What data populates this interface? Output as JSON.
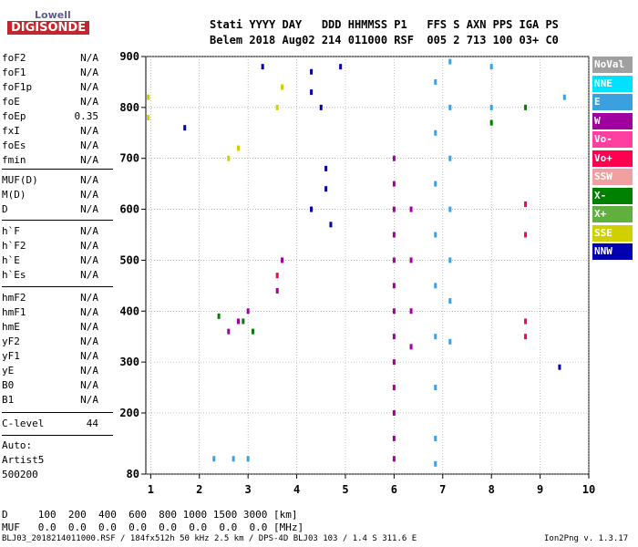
{
  "logo": {
    "top": "Lowell",
    "bottom": "DIGISONDE"
  },
  "header": {
    "line1": "Stati YYYY DAY   DDD HHMMSS P1   FFS S AXN PPS IGA PS",
    "line2": "Belem 2018 Aug02 214 011000 RSF  005 2 713 100 03+ C0"
  },
  "params": [
    {
      "name": "foF2",
      "value": "N/A"
    },
    {
      "name": "foF1",
      "value": "N/A"
    },
    {
      "name": "foF1p",
      "value": "N/A"
    },
    {
      "name": "foE",
      "value": "N/A"
    },
    {
      "name": "foEp",
      "value": "0.35"
    },
    {
      "name": "fxI",
      "value": "N/A"
    },
    {
      "name": "foEs",
      "value": "N/A"
    },
    {
      "name": "fmin",
      "value": "N/A"
    },
    {
      "name": "MUF(D)",
      "value": "N/A"
    },
    {
      "name": "M(D)",
      "value": "N/A"
    },
    {
      "name": "D",
      "value": "N/A"
    },
    {
      "name": "h`F",
      "value": "N/A"
    },
    {
      "name": "h`F2",
      "value": "N/A"
    },
    {
      "name": "h`E",
      "value": "N/A"
    },
    {
      "name": "h`Es",
      "value": "N/A"
    },
    {
      "name": "hmF2",
      "value": "N/A"
    },
    {
      "name": "hmF1",
      "value": "N/A"
    },
    {
      "name": "hmE",
      "value": "N/A"
    },
    {
      "name": "yF2",
      "value": "N/A"
    },
    {
      "name": "yF1",
      "value": "N/A"
    },
    {
      "name": "yE",
      "value": "N/A"
    },
    {
      "name": "B0",
      "value": "N/A"
    },
    {
      "name": "B1",
      "value": "N/A"
    },
    {
      "name": "C-level",
      "value": "44"
    }
  ],
  "auto": {
    "line1": "Auto:",
    "line2": "Artist5",
    "line3": "500200"
  },
  "footer": {
    "d_row": "D     100  200  400  600  800 1000 1500 3000 [km]",
    "muf_row": "MUF   0.0  0.0  0.0  0.0  0.0  0.0  0.0  0.0 [MHz]",
    "file": "BLJ03_2018214011000.RSF / 184fx512h 50 kHz 2.5 km / DPS-4D BLJ03 103 / 1.4 S 311.6 E",
    "version": "Ion2Png v. 1.3.17"
  },
  "legend": [
    {
      "label": "NoVal",
      "color": "#a0a0a0"
    },
    {
      "label": "NNE",
      "color": "#00e0ff"
    },
    {
      "label": "E",
      "color": "#3aa0e0"
    },
    {
      "label": "W",
      "color": "#a000a0"
    },
    {
      "label": "Vo-",
      "color": "#ff40a0"
    },
    {
      "label": "Vo+",
      "color": "#ff0050"
    },
    {
      "label": "SSW",
      "color": "#f0a0a0"
    },
    {
      "label": "X-",
      "color": "#008000"
    },
    {
      "label": "X+",
      "color": "#60b040"
    },
    {
      "label": "SSE",
      "color": "#d0d000"
    },
    {
      "label": "NNW",
      "color": "#0000b0"
    }
  ],
  "chart_data": {
    "type": "scatter",
    "title": "",
    "xlabel": "",
    "ylabel": "",
    "xlim": [
      0.9,
      10
    ],
    "ylim": [
      80,
      900
    ],
    "xticks": [
      "1",
      "2",
      "3",
      "4",
      "5",
      "6",
      "7",
      "8",
      "9",
      "10"
    ],
    "yticks": [
      "80",
      "200",
      "300",
      "400",
      "500",
      "600",
      "700",
      "800",
      "900"
    ],
    "grid": true,
    "series": [
      {
        "name": "W",
        "color": "#a000a0",
        "points": [
          [
            6.0,
            700
          ],
          [
            6.0,
            650
          ],
          [
            6.0,
            600
          ],
          [
            6.0,
            550
          ],
          [
            6.0,
            500
          ],
          [
            6.0,
            450
          ],
          [
            6.0,
            400
          ],
          [
            6.0,
            350
          ],
          [
            6.0,
            300
          ],
          [
            6.0,
            250
          ],
          [
            6.0,
            200
          ],
          [
            6.0,
            150
          ],
          [
            6.0,
            110
          ],
          [
            6.35,
            600
          ],
          [
            6.35,
            500
          ],
          [
            6.35,
            400
          ],
          [
            6.35,
            330
          ],
          [
            2.8,
            380
          ],
          [
            3.0,
            400
          ],
          [
            2.6,
            360
          ],
          [
            3.6,
            440
          ],
          [
            3.7,
            500
          ]
        ]
      },
      {
        "name": "E",
        "color": "#3aa0e0",
        "points": [
          [
            6.85,
            850
          ],
          [
            6.85,
            750
          ],
          [
            6.85,
            650
          ],
          [
            6.85,
            550
          ],
          [
            6.85,
            450
          ],
          [
            6.85,
            350
          ],
          [
            6.85,
            250
          ],
          [
            6.85,
            150
          ],
          [
            6.85,
            100
          ],
          [
            7.15,
            890
          ],
          [
            7.15,
            800
          ],
          [
            7.15,
            700
          ],
          [
            7.15,
            600
          ],
          [
            7.15,
            500
          ],
          [
            7.15,
            420
          ],
          [
            7.15,
            340
          ],
          [
            8.0,
            880
          ],
          [
            8.0,
            800
          ],
          [
            2.3,
            110
          ],
          [
            2.7,
            110
          ],
          [
            3.0,
            110
          ],
          [
            9.5,
            820
          ]
        ]
      },
      {
        "name": "Vo+",
        "color": "#ff0050",
        "points": [
          [
            8.7,
            380
          ],
          [
            8.7,
            350
          ],
          [
            8.7,
            610
          ],
          [
            8.7,
            550
          ],
          [
            3.6,
            470
          ]
        ]
      },
      {
        "name": "X-",
        "color": "#008000",
        "points": [
          [
            2.9,
            380
          ],
          [
            3.1,
            360
          ],
          [
            8.0,
            770
          ],
          [
            8.7,
            800
          ],
          [
            2.4,
            390
          ]
        ]
      },
      {
        "name": "SSE",
        "color": "#d0d000",
        "points": [
          [
            2.6,
            700
          ],
          [
            2.8,
            720
          ],
          [
            3.6,
            800
          ],
          [
            3.7,
            840
          ],
          [
            0.95,
            820
          ],
          [
            0.95,
            780
          ]
        ]
      },
      {
        "name": "NNW",
        "color": "#0000b0",
        "points": [
          [
            4.3,
            870
          ],
          [
            4.3,
            830
          ],
          [
            4.3,
            600
          ],
          [
            4.6,
            680
          ],
          [
            4.6,
            640
          ],
          [
            4.7,
            570
          ],
          [
            4.5,
            800
          ],
          [
            3.3,
            880
          ],
          [
            1.7,
            760
          ],
          [
            4.9,
            880
          ],
          [
            9.4,
            290
          ]
        ]
      }
    ]
  }
}
